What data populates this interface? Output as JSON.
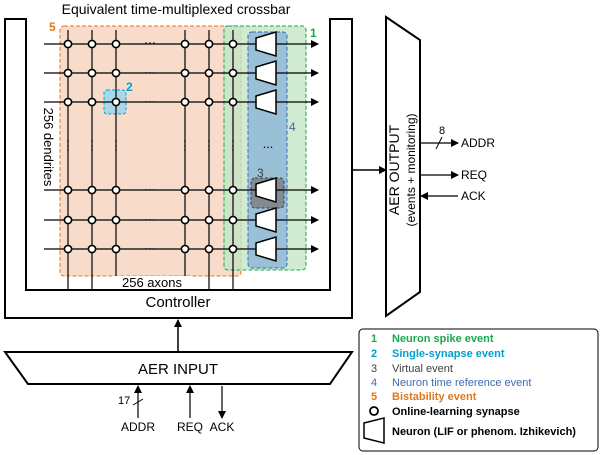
{
  "crossbar": {
    "title": "Equivalent time-multiplexed crossbar",
    "dendrites_label": "256 dendrites",
    "axons_label": "256 axons",
    "dots": "···",
    "vdots": "⋮",
    "neuron_dots": "...",
    "event_tags": [
      "1",
      "2",
      "3",
      "4",
      "5"
    ]
  },
  "controller": {
    "label": "Controller"
  },
  "aer_output": {
    "title": "AER OUTPUT",
    "subtitle": "(events + monitoring)",
    "bus_width": "8",
    "signals": [
      "ADDR",
      "REQ",
      "ACK"
    ]
  },
  "aer_input": {
    "title": "AER INPUT",
    "bus_width": "17",
    "signals": [
      "ADDR",
      "REQ",
      "ACK"
    ]
  },
  "legend": {
    "items": [
      {
        "num": "1",
        "label": "Neuron spike event",
        "color": "#1aa84e"
      },
      {
        "num": "2",
        "label": "Single-synapse event",
        "color": "#00a0d0"
      },
      {
        "num": "3",
        "label": "Virtual event",
        "color": "#404040"
      },
      {
        "num": "4",
        "label": "Neuron time reference event",
        "color": "#3f6ab0"
      },
      {
        "num": "5",
        "label": "Bistability event",
        "color": "#e07820"
      }
    ],
    "synapse_label": "Online-learning synapse",
    "neuron_label": "Neuron (LIF or phenom. Izhikevich)"
  },
  "colors": {
    "green": "#1aa84e",
    "cyan": "#00a0d0",
    "gray": "#404040",
    "blue": "#3f6ab0",
    "orange": "#e07820"
  }
}
